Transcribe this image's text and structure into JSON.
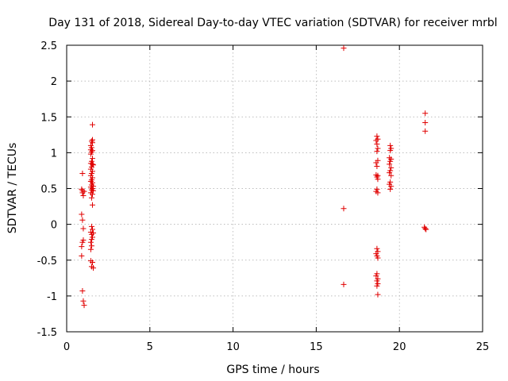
{
  "chart_data": {
    "type": "scatter",
    "title": "Day 131 of 2018, Sidereal Day-to-day VTEC variation (SDTVAR) for receiver mrbl",
    "xlabel": "GPS time / hours",
    "ylabel": "SDTVAR / TECUs",
    "xlim": [
      0,
      25
    ],
    "ylim": [
      -1.5,
      2.5
    ],
    "xticks": [
      0,
      5,
      10,
      15,
      20,
      25
    ],
    "yticks": [
      -1.5,
      -1,
      -0.5,
      0,
      0.5,
      1,
      1.5,
      2,
      2.5
    ],
    "xtick_labels": [
      "0",
      "5",
      "10",
      "15",
      "20",
      "25"
    ],
    "ytick_labels": [
      "-1.5",
      "-1",
      "-0.5",
      "0",
      "0.5",
      "1",
      "1.5",
      "2",
      "2.5"
    ],
    "grid": true,
    "marker": "+",
    "color": "#e00000",
    "series": [
      {
        "name": "SDTVAR",
        "points": [
          [
            0.95,
            0.71
          ],
          [
            0.9,
            0.49
          ],
          [
            0.95,
            0.47
          ],
          [
            1.05,
            0.46
          ],
          [
            0.95,
            0.44
          ],
          [
            1.0,
            0.4
          ],
          [
            0.9,
            0.14
          ],
          [
            0.95,
            0.06
          ],
          [
            1.0,
            -0.06
          ],
          [
            1.0,
            -0.22
          ],
          [
            0.95,
            -0.25
          ],
          [
            0.9,
            -0.31
          ],
          [
            0.9,
            -0.44
          ],
          [
            0.95,
            -0.93
          ],
          [
            1.0,
            -1.07
          ],
          [
            1.05,
            -1.13
          ],
          [
            1.55,
            1.39
          ],
          [
            1.55,
            1.18
          ],
          [
            1.5,
            1.16
          ],
          [
            1.55,
            1.14
          ],
          [
            1.45,
            1.1
          ],
          [
            1.5,
            1.07
          ],
          [
            1.45,
            1.04
          ],
          [
            1.55,
            1.03
          ],
          [
            1.5,
            1.01
          ],
          [
            1.45,
            0.98
          ],
          [
            1.55,
            0.92
          ],
          [
            1.5,
            0.88
          ],
          [
            1.45,
            0.85
          ],
          [
            1.55,
            0.84
          ],
          [
            1.6,
            0.83
          ],
          [
            1.5,
            0.8
          ],
          [
            1.45,
            0.77
          ],
          [
            1.55,
            0.74
          ],
          [
            1.5,
            0.71
          ],
          [
            1.45,
            0.68
          ],
          [
            1.55,
            0.65
          ],
          [
            1.5,
            0.62
          ],
          [
            1.45,
            0.6
          ],
          [
            1.55,
            0.58
          ],
          [
            1.5,
            0.55
          ],
          [
            1.6,
            0.53
          ],
          [
            1.45,
            0.52
          ],
          [
            1.55,
            0.5
          ],
          [
            1.5,
            0.48
          ],
          [
            1.6,
            0.47
          ],
          [
            1.45,
            0.44
          ],
          [
            1.55,
            0.42
          ],
          [
            1.5,
            0.37
          ],
          [
            1.55,
            0.27
          ],
          [
            1.5,
            -0.03
          ],
          [
            1.55,
            -0.07
          ],
          [
            1.45,
            -0.11
          ],
          [
            1.6,
            -0.12
          ],
          [
            1.5,
            -0.14
          ],
          [
            1.55,
            -0.18
          ],
          [
            1.5,
            -0.21
          ],
          [
            1.45,
            -0.25
          ],
          [
            1.5,
            -0.3
          ],
          [
            1.45,
            -0.35
          ],
          [
            1.45,
            -0.51
          ],
          [
            1.55,
            -0.53
          ],
          [
            1.5,
            -0.59
          ],
          [
            1.6,
            -0.61
          ],
          [
            16.65,
            2.46
          ],
          [
            16.65,
            0.22
          ],
          [
            16.65,
            -0.84
          ],
          [
            18.65,
            1.23
          ],
          [
            18.7,
            1.19
          ],
          [
            18.6,
            1.17
          ],
          [
            18.65,
            1.12
          ],
          [
            18.7,
            1.06
          ],
          [
            18.65,
            1.02
          ],
          [
            18.7,
            0.89
          ],
          [
            18.6,
            0.86
          ],
          [
            18.65,
            0.81
          ],
          [
            18.6,
            0.69
          ],
          [
            18.7,
            0.68
          ],
          [
            18.65,
            0.66
          ],
          [
            18.7,
            0.63
          ],
          [
            18.65,
            0.49
          ],
          [
            18.6,
            0.46
          ],
          [
            18.7,
            0.44
          ],
          [
            18.65,
            -0.34
          ],
          [
            18.7,
            -0.38
          ],
          [
            18.6,
            -0.41
          ],
          [
            18.65,
            -0.44
          ],
          [
            18.7,
            -0.47
          ],
          [
            18.65,
            -0.69
          ],
          [
            18.6,
            -0.72
          ],
          [
            18.7,
            -0.76
          ],
          [
            18.65,
            -0.79
          ],
          [
            18.7,
            -0.83
          ],
          [
            18.65,
            -0.86
          ],
          [
            18.7,
            -0.98
          ],
          [
            19.45,
            1.1
          ],
          [
            19.5,
            1.06
          ],
          [
            19.45,
            1.03
          ],
          [
            19.4,
            0.93
          ],
          [
            19.5,
            0.91
          ],
          [
            19.45,
            0.88
          ],
          [
            19.4,
            0.84
          ],
          [
            19.5,
            0.79
          ],
          [
            19.45,
            0.75
          ],
          [
            19.4,
            0.72
          ],
          [
            19.5,
            0.68
          ],
          [
            19.45,
            0.59
          ],
          [
            19.4,
            0.56
          ],
          [
            19.5,
            0.53
          ],
          [
            19.45,
            0.49
          ],
          [
            21.55,
            1.55
          ],
          [
            21.55,
            1.42
          ],
          [
            21.55,
            1.3
          ],
          [
            21.5,
            -0.04
          ],
          [
            21.55,
            -0.06
          ],
          [
            21.6,
            -0.07
          ]
        ]
      }
    ]
  }
}
